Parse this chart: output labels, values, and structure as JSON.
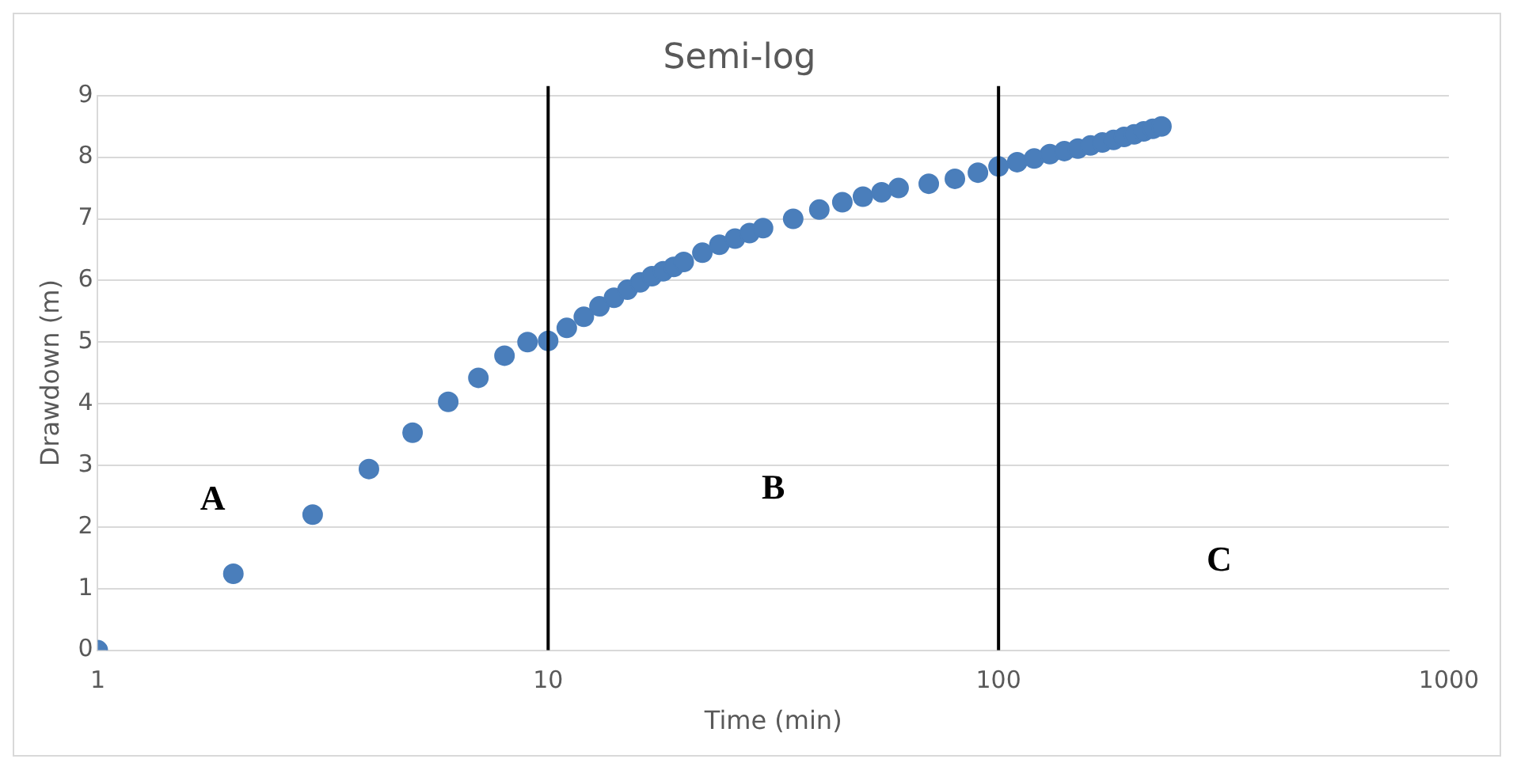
{
  "chart_data": {
    "type": "scatter",
    "title": "Semi-log",
    "xlabel": "Time (min)",
    "ylabel": "Drawdown (m)",
    "x": [
      1,
      2,
      3,
      4,
      5,
      6,
      7,
      8,
      9,
      10,
      11,
      12,
      13,
      14,
      15,
      16,
      17,
      18,
      19,
      20,
      22,
      24,
      26,
      28,
      30,
      35,
      40,
      45,
      50,
      55,
      60,
      70,
      80,
      90,
      100,
      110,
      120,
      130,
      140,
      150,
      160,
      170,
      180,
      190,
      200,
      210,
      220,
      230
    ],
    "values": [
      0,
      1.24,
      2.2,
      2.94,
      3.53,
      4.03,
      4.42,
      4.78,
      5.0,
      5.02,
      5.23,
      5.41,
      5.58,
      5.72,
      5.85,
      5.97,
      6.07,
      6.15,
      6.22,
      6.3,
      6.45,
      6.58,
      6.68,
      6.77,
      6.85,
      7.0,
      7.15,
      7.27,
      7.36,
      7.43,
      7.5,
      7.57,
      7.65,
      7.75,
      7.85,
      7.92,
      7.98,
      8.05,
      8.1,
      8.14,
      8.19,
      8.24,
      8.28,
      8.33,
      8.37,
      8.42,
      8.46,
      8.5
    ],
    "color": "#4a7ebb",
    "marker": "circle",
    "log": "x",
    "grid": "y",
    "xlim": [
      1,
      1000
    ],
    "xticks": [
      1,
      10,
      100,
      1000
    ],
    "ylim": [
      0,
      9
    ],
    "yticks": [
      0,
      1,
      2,
      3,
      4,
      5,
      6,
      7,
      8,
      9
    ],
    "ref_lines": [
      {
        "axis": "x",
        "value": 10,
        "color": "#000000"
      },
      {
        "axis": "x",
        "value": 100,
        "color": "#000000"
      }
    ],
    "annotations": [
      "A",
      "B",
      "C"
    ]
  }
}
